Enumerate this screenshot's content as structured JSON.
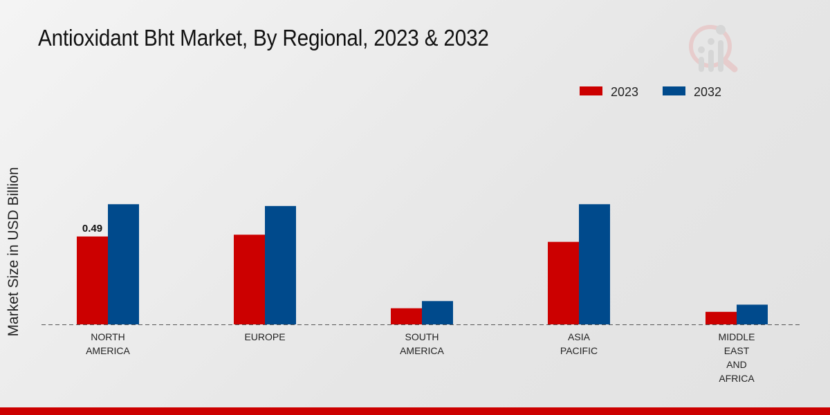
{
  "chart_data": {
    "type": "bar",
    "title": "Antioxidant Bht Market, By Regional, 2023 & 2032",
    "xlabel": "",
    "ylabel": "Market Size in USD Billion",
    "ylim": [
      0,
      1.23
    ],
    "grid": false,
    "legend_placement": "top-right",
    "categories": [
      [
        "NORTH",
        "AMERICA"
      ],
      [
        "EUROPE"
      ],
      [
        "SOUTH",
        "AMERICA"
      ],
      [
        "ASIA",
        "PACIFIC"
      ],
      [
        "MIDDLE",
        "EAST",
        "AND",
        "AFRICA"
      ]
    ],
    "series": [
      {
        "name": "2023",
        "color": "#cc0000",
        "values": [
          0.49,
          0.5,
          0.09,
          0.46,
          0.07
        ]
      },
      {
        "name": "2032",
        "color": "#004a8c",
        "values": [
          0.67,
          0.66,
          0.13,
          0.67,
          0.11
        ]
      }
    ],
    "annotations": [
      {
        "series": 0,
        "category": 0,
        "text": "0.49"
      }
    ]
  }
}
